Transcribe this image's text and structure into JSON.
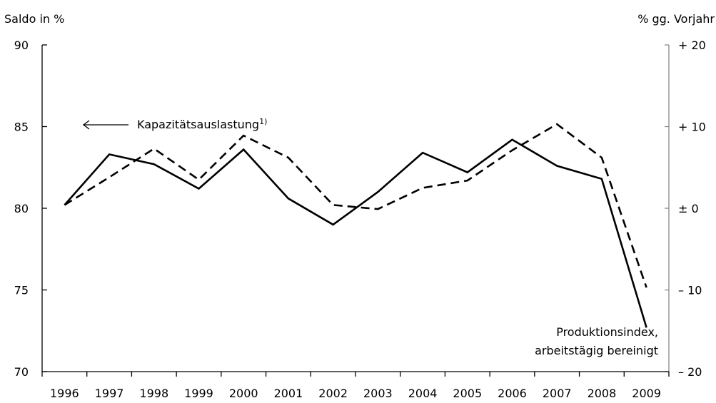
{
  "chart_data": {
    "type": "line",
    "categories": [
      "1996",
      "1997",
      "1998",
      "1999",
      "2000",
      "2001",
      "2002",
      "2003",
      "2004",
      "2005",
      "2006",
      "2007",
      "2008",
      "2009"
    ],
    "left_axis": {
      "label": "Saldo in %",
      "ylim": [
        70,
        90
      ],
      "ticks": [
        {
          "value": 90,
          "label": "90"
        },
        {
          "value": 85,
          "label": "85"
        },
        {
          "value": 80,
          "label": "80"
        },
        {
          "value": 75,
          "label": "75"
        },
        {
          "value": 70,
          "label": "70"
        }
      ]
    },
    "right_axis": {
      "label": "% gg. Vorjahr",
      "ylim": [
        -20,
        20
      ],
      "ticks": [
        {
          "value": 20,
          "label": "+ 20"
        },
        {
          "value": 10,
          "label": "+ 10"
        },
        {
          "value": 0,
          "label": "± 0"
        },
        {
          "value": -10,
          "label": "– 10"
        },
        {
          "value": -20,
          "label": "– 20"
        }
      ]
    },
    "series": [
      {
        "id": "kapazitaet",
        "axis": "left",
        "style": "solid",
        "color": "#000000",
        "values": [
          80.2,
          83.3,
          82.7,
          81.2,
          83.6,
          80.6,
          79.0,
          81.0,
          83.4,
          82.2,
          84.2,
          82.6,
          81.8,
          72.7
        ]
      },
      {
        "id": "produktion",
        "axis": "right",
        "style": "dashed",
        "color": "#000000",
        "values": [
          0.4,
          3.8,
          7.3,
          3.5,
          8.9,
          6.2,
          0.4,
          -0.1,
          2.5,
          3.4,
          7.1,
          10.3,
          6.2,
          -9.7
        ]
      }
    ],
    "annotations": [
      {
        "id": "kapazitaet-label",
        "text": "Kapazitätsauslastung",
        "footnote": "1)",
        "arrow": "left"
      },
      {
        "id": "produktion-label",
        "lines": [
          "Produktionsindex,",
          "arbeitstägig bereinigt"
        ]
      }
    ]
  }
}
